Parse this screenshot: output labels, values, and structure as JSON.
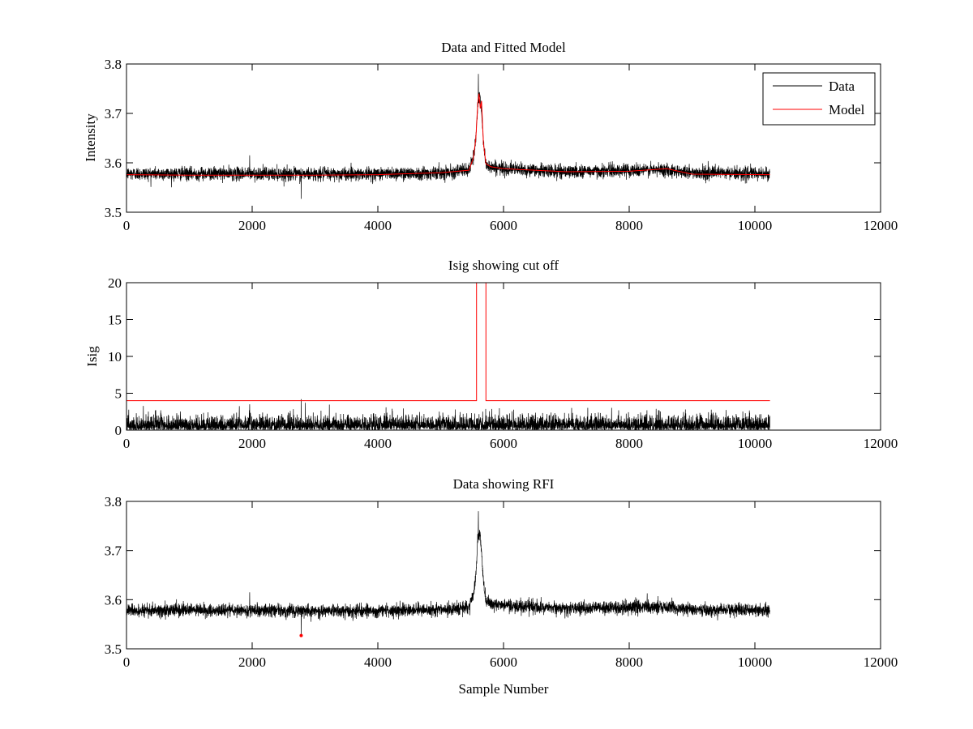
{
  "colors": {
    "data": "#000000",
    "model": "#ff0000",
    "background": "#ffffff"
  },
  "chart_data": [
    {
      "type": "line",
      "title": "Data and Fitted Model",
      "xlabel": "",
      "ylabel": "Intensity",
      "xlim": [
        0,
        12000
      ],
      "ylim": [
        3.5,
        3.8
      ],
      "xticks": [
        0,
        2000,
        4000,
        6000,
        8000,
        10000,
        12000
      ],
      "yticks": [
        3.5,
        3.6,
        3.7,
        3.8
      ],
      "xtick_labels": [
        "0",
        "2000",
        "4000",
        "6000",
        "8000",
        "10000",
        "12000"
      ],
      "ytick_labels": [
        "3.5",
        "3.6",
        "3.7",
        "3.8"
      ],
      "legend": {
        "position": "top-right",
        "entries": [
          "Data",
          "Model"
        ]
      },
      "series": [
        {
          "name": "Data",
          "kind": "noisy",
          "n_samples": 10240,
          "noise_amplitude": 0.012,
          "spikes": [
            {
              "x": 1960,
              "y": 3.615
            },
            {
              "x": 2780,
              "y": 3.527
            },
            {
              "x": 5600,
              "y": 3.78
            }
          ],
          "baseline": [
            [
              0,
              3.578
            ],
            [
              1000,
              3.578
            ],
            [
              2000,
              3.578
            ],
            [
              3000,
              3.577
            ],
            [
              4000,
              3.578
            ],
            [
              5000,
              3.58
            ],
            [
              5450,
              3.585
            ],
            [
              5520,
              3.61
            ],
            [
              5560,
              3.65
            ],
            [
              5590,
              3.72
            ],
            [
              5620,
              3.74
            ],
            [
              5650,
              3.7
            ],
            [
              5680,
              3.64
            ],
            [
              5720,
              3.598
            ],
            [
              5800,
              3.592
            ],
            [
              6000,
              3.588
            ],
            [
              7000,
              3.582
            ],
            [
              8000,
              3.585
            ],
            [
              8600,
              3.586
            ],
            [
              9000,
              3.58
            ],
            [
              10240,
              3.578
            ]
          ]
        },
        {
          "name": "Model",
          "kind": "line",
          "points": [
            [
              0,
              3.576
            ],
            [
              1000,
              3.575
            ],
            [
              2000,
              3.575
            ],
            [
              3000,
              3.575
            ],
            [
              4000,
              3.576
            ],
            [
              5000,
              3.58
            ],
            [
              5450,
              3.585
            ],
            [
              5520,
              3.61
            ],
            [
              5560,
              3.65
            ],
            [
              5590,
              3.72
            ],
            [
              5610,
              3.74
            ],
            [
              5630,
              3.71
            ],
            [
              5650,
              3.725
            ],
            [
              5680,
              3.64
            ],
            [
              5720,
              3.598
            ],
            [
              5800,
              3.592
            ],
            [
              6000,
              3.588
            ],
            [
              7000,
              3.582
            ],
            [
              8000,
              3.583
            ],
            [
              8600,
              3.588
            ],
            [
              9000,
              3.577
            ],
            [
              10240,
              3.576
            ]
          ]
        }
      ]
    },
    {
      "type": "line",
      "title": "Isig showing cut off",
      "xlabel": "",
      "ylabel": "Isig",
      "xlim": [
        0,
        12000
      ],
      "ylim": [
        0,
        20
      ],
      "xticks": [
        0,
        2000,
        4000,
        6000,
        8000,
        10000,
        12000
      ],
      "yticks": [
        0,
        5,
        10,
        15,
        20
      ],
      "xtick_labels": [
        "0",
        "2000",
        "4000",
        "6000",
        "8000",
        "10000",
        "12000"
      ],
      "ytick_labels": [
        "0",
        "5",
        "10",
        "15",
        "20"
      ],
      "series": [
        {
          "name": "Isig",
          "kind": "noise-floor",
          "n_samples": 10240,
          "max_typical": 2.5,
          "spikes": [
            {
              "x": 1960,
              "y": 3.5
            },
            {
              "x": 2780,
              "y": 4.2
            }
          ]
        },
        {
          "name": "Cut off",
          "kind": "line",
          "points": [
            [
              0,
              4
            ],
            [
              5570,
              4
            ],
            [
              5570,
              20
            ],
            [
              5720,
              20
            ],
            [
              5720,
              4
            ],
            [
              10240,
              4
            ]
          ]
        }
      ]
    },
    {
      "type": "line",
      "title": "Data showing RFI",
      "xlabel": "Sample Number",
      "ylabel": "",
      "xlim": [
        0,
        12000
      ],
      "ylim": [
        3.5,
        3.8
      ],
      "xticks": [
        0,
        2000,
        4000,
        6000,
        8000,
        10000,
        12000
      ],
      "yticks": [
        3.5,
        3.6,
        3.7,
        3.8
      ],
      "xtick_labels": [
        "0",
        "2000",
        "4000",
        "6000",
        "8000",
        "10000",
        "12000"
      ],
      "ytick_labels": [
        "3.5",
        "3.6",
        "3.7",
        "3.8"
      ],
      "series": [
        {
          "name": "Data",
          "kind": "noisy",
          "n_samples": 10240,
          "noise_amplitude": 0.012,
          "spikes": [
            {
              "x": 1960,
              "y": 3.615
            },
            {
              "x": 2780,
              "y": 3.527
            },
            {
              "x": 5600,
              "y": 3.78
            }
          ],
          "baseline": [
            [
              0,
              3.578
            ],
            [
              1000,
              3.578
            ],
            [
              2000,
              3.578
            ],
            [
              3000,
              3.577
            ],
            [
              4000,
              3.578
            ],
            [
              5000,
              3.58
            ],
            [
              5450,
              3.585
            ],
            [
              5520,
              3.61
            ],
            [
              5560,
              3.65
            ],
            [
              5590,
              3.72
            ],
            [
              5620,
              3.74
            ],
            [
              5650,
              3.7
            ],
            [
              5680,
              3.64
            ],
            [
              5720,
              3.598
            ],
            [
              5800,
              3.592
            ],
            [
              6000,
              3.588
            ],
            [
              7000,
              3.582
            ],
            [
              8000,
              3.585
            ],
            [
              8600,
              3.586
            ],
            [
              9000,
              3.58
            ],
            [
              10240,
              3.578
            ]
          ]
        },
        {
          "name": "RFI",
          "kind": "markers",
          "points": [
            [
              2780,
              3.527
            ]
          ]
        }
      ]
    }
  ]
}
